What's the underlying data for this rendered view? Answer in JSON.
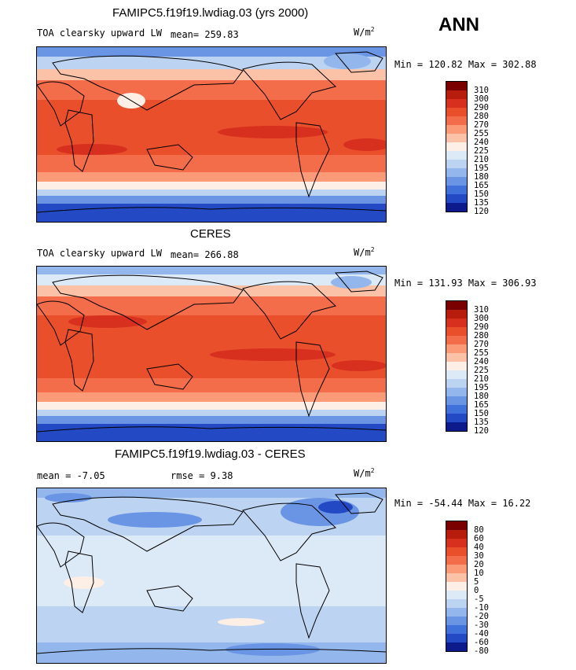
{
  "season": "ANN",
  "panels": [
    {
      "title": "FAMIPC5.f19f19.lwdiag.03 (yrs 2000)",
      "subtitle": "TOA clearsky upward LW",
      "stat": "mean= 259.83",
      "units_base": "W/m",
      "units_exp": "2",
      "minmax": "Min = 120.82 Max = 302.88",
      "colorbar_levels": [
        "310",
        "300",
        "290",
        "280",
        "270",
        "255",
        "240",
        "225",
        "210",
        "195",
        "180",
        "165",
        "150",
        "135",
        "120"
      ],
      "colorbar_colors": [
        "#7a0000",
        "#b71c0c",
        "#d7301f",
        "#ea4f2c",
        "#f46d4a",
        "#fb9a77",
        "#fcc2a8",
        "#fdeee6",
        "#dce9f7",
        "#bcd4f2",
        "#93b7ec",
        "#6a94e4",
        "#4070da",
        "#2449c4",
        "#0d1a8c"
      ]
    },
    {
      "title": "CERES",
      "subtitle": "TOA clearsky upward LW",
      "stat": "mean= 266.88",
      "units_base": "W/m",
      "units_exp": "2",
      "minmax": "Min = 131.93 Max = 306.93",
      "colorbar_levels": [
        "310",
        "300",
        "290",
        "280",
        "270",
        "255",
        "240",
        "225",
        "210",
        "195",
        "180",
        "165",
        "150",
        "135",
        "120"
      ],
      "colorbar_colors": [
        "#7a0000",
        "#b71c0c",
        "#d7301f",
        "#ea4f2c",
        "#f46d4a",
        "#fb9a77",
        "#fcc2a8",
        "#fdeee6",
        "#dce9f7",
        "#bcd4f2",
        "#93b7ec",
        "#6a94e4",
        "#4070da",
        "#2449c4",
        "#0d1a8c"
      ]
    },
    {
      "title": "FAMIPC5.f19f19.lwdiag.03 - CERES",
      "mean": "mean =  -7.05",
      "rmse": "rmse =   9.38",
      "units_base": "W/m",
      "units_exp": "2",
      "minmax": "Min = -54.44 Max =  16.22",
      "colorbar_levels": [
        "80",
        "60",
        "40",
        "30",
        "20",
        "10",
        "5",
        "0",
        "-5",
        "-10",
        "-20",
        "-30",
        "-40",
        "-60",
        "-80"
      ],
      "colorbar_colors": [
        "#7a0000",
        "#b71c0c",
        "#d7301f",
        "#ea4f2c",
        "#f46d4a",
        "#fb9a77",
        "#fcc2a8",
        "#fdeee6",
        "#dce9f7",
        "#bcd4f2",
        "#93b7ec",
        "#6a94e4",
        "#4070da",
        "#2449c4",
        "#0d1a8c"
      ]
    }
  ]
}
